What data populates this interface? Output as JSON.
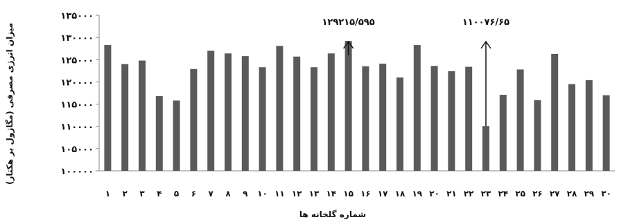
{
  "chart_data": {
    "type": "bar",
    "categories": [
      "۱",
      "۲",
      "۳",
      "۴",
      "۵",
      "۶",
      "۷",
      "۸",
      "۹",
      "۱۰",
      "۱۱",
      "۱۲",
      "۱۳",
      "۱۴",
      "۱۵",
      "۱۶",
      "۱۷",
      "۱۸",
      "۱۹",
      "۲۰",
      "۲۱",
      "۲۲",
      "۲۳",
      "۲۴",
      "۲۵",
      "۲۶",
      "۲۷",
      "۲۸",
      "۲۹",
      "۳۰"
    ],
    "values": [
      128300,
      124000,
      124800,
      116800,
      115800,
      122900,
      127000,
      126400,
      125800,
      123300,
      128100,
      125700,
      123300,
      126400,
      129215.595,
      123500,
      124100,
      121000,
      128300,
      123600,
      122400,
      123400,
      110076.65,
      117100,
      122800,
      115900,
      126300,
      119500,
      120400,
      117000
    ],
    "title": "",
    "xlabel": "شماره گلخانه ها",
    "ylabel": "میزان انرژی مصرفی (مگاژول بر هکتار)",
    "ylim": [
      100000,
      135000
    ],
    "yticks": [
      "۱۰۰۰۰۰",
      "۱۰۵۰۰۰",
      "۱۱۰۰۰۰",
      "۱۱۵۰۰۰",
      "۱۲۰۰۰۰",
      "۱۲۵۰۰۰",
      "۱۳۰۰۰۰",
      "۱۳۵۰۰۰"
    ],
    "ytick_values": [
      100000,
      105000,
      110000,
      115000,
      120000,
      125000,
      130000,
      135000
    ],
    "annotations": [
      {
        "label": "۱۲۹۲۱۵/۵۹۵",
        "bar_index": 14,
        "value": 129215.595
      },
      {
        "label": "۱۱۰۰۷۶/۶۵",
        "bar_index": 22,
        "value": 110076.65
      }
    ],
    "bar_color": "#5a5a5a",
    "grid": false,
    "legend": "none"
  }
}
